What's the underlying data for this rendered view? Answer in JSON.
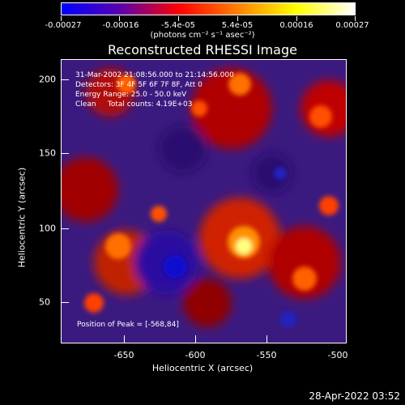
{
  "colorbar": {
    "tick_labels": [
      "-0.00027",
      "-0.00016",
      "-5.4e-05",
      "5.4e-05",
      "0.00016",
      "0.00027"
    ],
    "units": "(photons cm⁻² s⁻¹ asec⁻²)",
    "colors": [
      "#0000ff",
      "#5a00b0",
      "#ff0000",
      "#ff8000",
      "#ffff00",
      "#ffffff"
    ]
  },
  "title": "Reconstructed RHESSI Image",
  "annotations": {
    "time_range": "31-Mar-2002 21:08:56.000 to 21:14:56.000",
    "detectors": "Detectors: 3F 4F 5F 6F 7F 8F, Att 0",
    "energy_range": "Energy Range: 25.0 - 50.0 keV",
    "clean_counts": "Clean     Total counts: 4.19E+03",
    "peak_position": "Position of Peak = [-568,84]"
  },
  "axes": {
    "xlabel": "Heliocentric X (arcsec)",
    "ylabel": "Heliocentric Y (arcsec)",
    "xticks": [
      "-650",
      "-600",
      "-550",
      "-500"
    ],
    "yticks": [
      "200",
      "150",
      "100",
      "50"
    ]
  },
  "footer_timestamp": "28-Apr-2022 03:52"
}
